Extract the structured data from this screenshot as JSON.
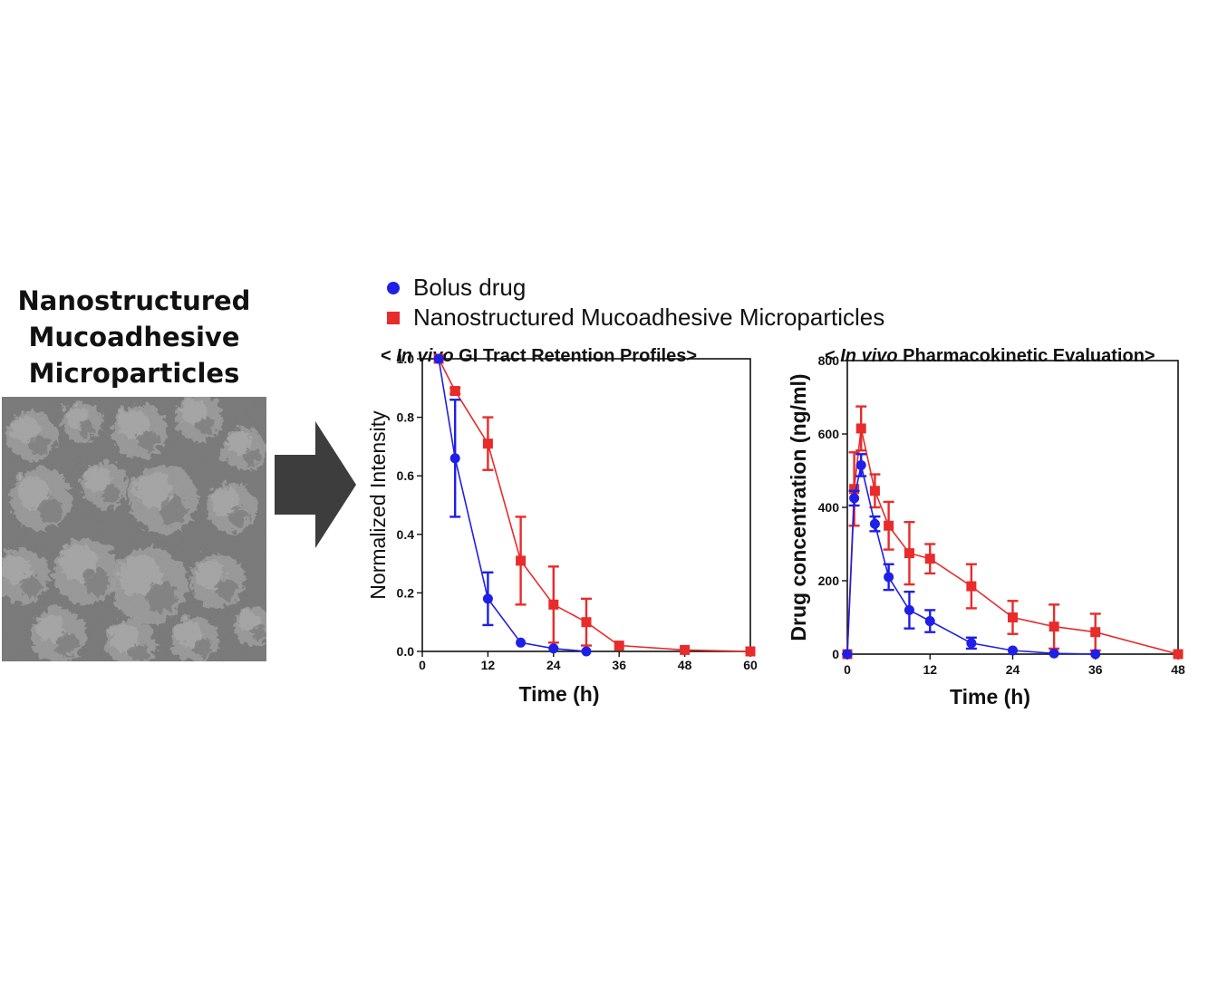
{
  "figure": {
    "left_title_lines": [
      "Nanostructured",
      "Mucoadhesive",
      "Microparticles"
    ],
    "micrograph_icon": "sem-micrograph",
    "arrow_icon": "right-arrow-icon",
    "arrow_color": "#3d3d3d"
  },
  "legend": {
    "items": [
      {
        "label": "Bolus drug",
        "marker": "circle",
        "color": "#1f1fe6"
      },
      {
        "label": "Nanostructured Mucoadhesive Microparticles",
        "marker": "square",
        "color": "#e82b2b"
      }
    ]
  },
  "chart_data": [
    {
      "type": "line",
      "title_prefix": "< ",
      "title_italic": "In vivo",
      "title_rest": " GI Tract Retention Profiles>",
      "xlabel": "Time  (h)",
      "ylabel": "Normalized Intensity",
      "xlim": [
        0,
        60
      ],
      "ylim": [
        0,
        1.0
      ],
      "xticks": [
        0,
        12,
        24,
        36,
        48,
        60
      ],
      "yticks": [
        0.0,
        0.2,
        0.4,
        0.6,
        0.8,
        1.0
      ],
      "ytick_labels": [
        "0.0",
        "0.2",
        "0.4",
        "0.6",
        "0.8",
        "1.0"
      ],
      "series": [
        {
          "name": "Bolus drug",
          "color": "#1f1fe6",
          "marker": "circle",
          "x": [
            3,
            6,
            12,
            18,
            24,
            30
          ],
          "y": [
            1.0,
            0.66,
            0.18,
            0.03,
            0.01,
            0.0
          ],
          "err": [
            0,
            0.2,
            0.09,
            0,
            0,
            0
          ]
        },
        {
          "name": "Nanostructured Mucoadhesive Microparticles",
          "color": "#e82b2b",
          "marker": "square",
          "x": [
            3,
            6,
            12,
            18,
            24,
            30,
            36,
            48,
            60
          ],
          "y": [
            1.0,
            0.89,
            0.71,
            0.31,
            0.16,
            0.1,
            0.02,
            0.005,
            0.0
          ],
          "err": [
            0,
            0.01,
            0.09,
            0.15,
            0.13,
            0.08,
            0,
            0,
            0
          ]
        }
      ]
    },
    {
      "type": "line",
      "title_prefix": "< ",
      "title_italic": "In vivo",
      "title_rest": " Pharmacokinetic Evaluation>",
      "xlabel": "Time  (h)",
      "ylabel": "Drug concentration  (ng/ml)",
      "xlim": [
        0,
        48
      ],
      "ylim": [
        0,
        800
      ],
      "xticks": [
        0,
        12,
        24,
        36,
        48
      ],
      "yticks": [
        0,
        200,
        400,
        600,
        800
      ],
      "ytick_labels": [
        "0",
        "200",
        "400",
        "600",
        "800"
      ],
      "series": [
        {
          "name": "Bolus drug",
          "color": "#1f1fe6",
          "marker": "circle",
          "x": [
            0,
            1,
            2,
            4,
            6,
            9,
            12,
            18,
            24,
            30,
            36
          ],
          "y": [
            0,
            425,
            515,
            355,
            210,
            120,
            90,
            30,
            10,
            2,
            0
          ],
          "err": [
            0,
            20,
            30,
            20,
            35,
            50,
            30,
            15,
            0,
            0,
            0
          ]
        },
        {
          "name": "Nanostructured Mucoadhesive Microparticles",
          "color": "#e82b2b",
          "marker": "square",
          "x": [
            0,
            1,
            2,
            4,
            6,
            9,
            12,
            18,
            24,
            30,
            36,
            48
          ],
          "y": [
            0,
            450,
            615,
            445,
            350,
            275,
            260,
            185,
            100,
            75,
            60,
            0
          ],
          "err": [
            0,
            100,
            60,
            45,
            65,
            85,
            40,
            60,
            45,
            60,
            50,
            0
          ]
        }
      ]
    }
  ]
}
